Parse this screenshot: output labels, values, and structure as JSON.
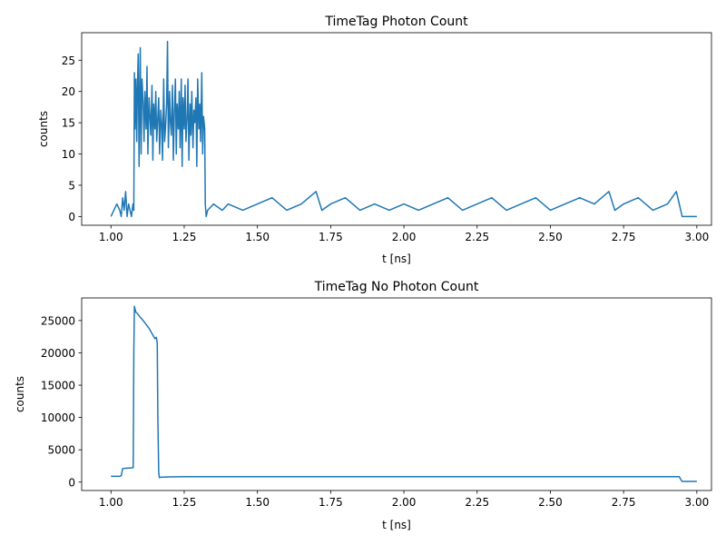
{
  "chart_data": [
    {
      "type": "line",
      "title": "TimeTag Photon Count",
      "xlabel": "t [ns]",
      "ylabel": "counts",
      "xlim": [
        0.9,
        3.05
      ],
      "ylim": [
        -1.4,
        29.4
      ],
      "xticks": [
        1.0,
        1.25,
        1.5,
        1.75,
        2.0,
        2.25,
        2.5,
        2.75,
        3.0
      ],
      "xtick_labels": [
        "1.00",
        "1.25",
        "1.50",
        "1.75",
        "2.00",
        "2.25",
        "2.50",
        "2.75",
        "3.00"
      ],
      "yticks": [
        0,
        5,
        10,
        15,
        20,
        25
      ],
      "ytick_labels": [
        "0",
        "5",
        "10",
        "15",
        "20",
        "25"
      ],
      "grid": false,
      "color": "#1f77b4",
      "series": [
        {
          "x": [
            1.0,
            1.02,
            1.03,
            1.035,
            1.04,
            1.045,
            1.05,
            1.055,
            1.06,
            1.065,
            1.07,
            1.075,
            1.078,
            1.08,
            1.082,
            1.085,
            1.088,
            1.09,
            1.093,
            1.096,
            1.1,
            1.103,
            1.106,
            1.11,
            1.113,
            1.116,
            1.12,
            1.123,
            1.126,
            1.13,
            1.133,
            1.136,
            1.14,
            1.143,
            1.146,
            1.15,
            1.153,
            1.156,
            1.16,
            1.163,
            1.166,
            1.17,
            1.173,
            1.176,
            1.18,
            1.183,
            1.186,
            1.19,
            1.193,
            1.196,
            1.2,
            1.203,
            1.206,
            1.21,
            1.213,
            1.216,
            1.22,
            1.223,
            1.226,
            1.23,
            1.233,
            1.236,
            1.24,
            1.243,
            1.246,
            1.25,
            1.253,
            1.256,
            1.26,
            1.263,
            1.266,
            1.27,
            1.273,
            1.276,
            1.28,
            1.283,
            1.286,
            1.29,
            1.293,
            1.296,
            1.3,
            1.303,
            1.306,
            1.31,
            1.313,
            1.316,
            1.32,
            1.322,
            1.325,
            1.33,
            1.35,
            1.38,
            1.4,
            1.45,
            1.5,
            1.55,
            1.6,
            1.65,
            1.7,
            1.72,
            1.75,
            1.8,
            1.85,
            1.9,
            1.95,
            2.0,
            2.05,
            2.1,
            2.15,
            2.2,
            2.25,
            2.3,
            2.35,
            2.4,
            2.45,
            2.5,
            2.55,
            2.6,
            2.65,
            2.7,
            2.72,
            2.75,
            2.8,
            2.85,
            2.9,
            2.93,
            2.94,
            2.945,
            2.95,
            3.0
          ],
          "y": [
            0,
            2,
            1,
            0,
            3,
            1,
            4,
            0,
            2,
            1,
            0,
            2,
            1,
            23,
            14,
            22,
            12,
            20,
            26,
            8,
            27,
            10,
            22,
            18,
            12,
            20,
            14,
            24,
            10,
            19,
            16,
            13,
            21,
            9,
            18,
            14,
            20,
            12,
            16,
            19,
            10,
            17,
            15,
            9,
            22,
            12,
            14,
            18,
            28,
            11,
            20,
            15,
            13,
            21,
            9,
            16,
            22,
            10,
            18,
            14,
            20,
            11,
            22,
            8,
            19,
            14,
            21,
            12,
            16,
            22,
            9,
            18,
            13,
            20,
            11,
            17,
            15,
            19,
            8,
            22,
            14,
            18,
            12,
            23,
            10,
            16,
            14,
            2,
            0,
            1,
            2,
            1,
            2,
            1,
            2,
            3,
            1,
            2,
            4,
            1,
            2,
            3,
            1,
            2,
            1,
            2,
            1,
            2,
            3,
            1,
            2,
            3,
            1,
            2,
            3,
            1,
            2,
            3,
            2,
            4,
            1,
            2,
            3,
            1,
            2,
            4,
            2,
            1,
            0,
            0
          ]
        }
      ]
    },
    {
      "type": "line",
      "title": "TimeTag No Photon Count",
      "xlabel": "t [ns]",
      "ylabel": "counts",
      "xlim": [
        0.9,
        3.05
      ],
      "ylim": [
        -1300,
        28500
      ],
      "xticks": [
        1.0,
        1.25,
        1.5,
        1.75,
        2.0,
        2.25,
        2.5,
        2.75,
        3.0
      ],
      "xtick_labels": [
        "1.00",
        "1.25",
        "1.50",
        "1.75",
        "2.00",
        "2.25",
        "2.50",
        "2.75",
        "3.00"
      ],
      "yticks": [
        0,
        5000,
        10000,
        15000,
        20000,
        25000
      ],
      "ytick_labels": [
        "0",
        "5000",
        "10000",
        "15000",
        "20000",
        "25000"
      ],
      "grid": false,
      "color": "#1f77b4",
      "series": [
        {
          "x": [
            1.0,
            1.03,
            1.035,
            1.04,
            1.05,
            1.07,
            1.076,
            1.078,
            1.08,
            1.085,
            1.09,
            1.1,
            1.11,
            1.12,
            1.13,
            1.14,
            1.15,
            1.155,
            1.158,
            1.16,
            1.163,
            1.165,
            1.17,
            1.2,
            1.25,
            1.3,
            1.5,
            1.75,
            2.0,
            2.25,
            2.5,
            2.75,
            2.9,
            2.94,
            2.945,
            2.95,
            3.0
          ],
          "y": [
            900,
            900,
            1000,
            2100,
            2150,
            2200,
            2250,
            20000,
            27200,
            26300,
            26100,
            25500,
            25000,
            24400,
            23800,
            23000,
            22200,
            22400,
            21500,
            10000,
            1500,
            700,
            750,
            800,
            850,
            850,
            850,
            850,
            850,
            850,
            850,
            850,
            850,
            850,
            400,
            100,
            100
          ]
        }
      ]
    }
  ]
}
